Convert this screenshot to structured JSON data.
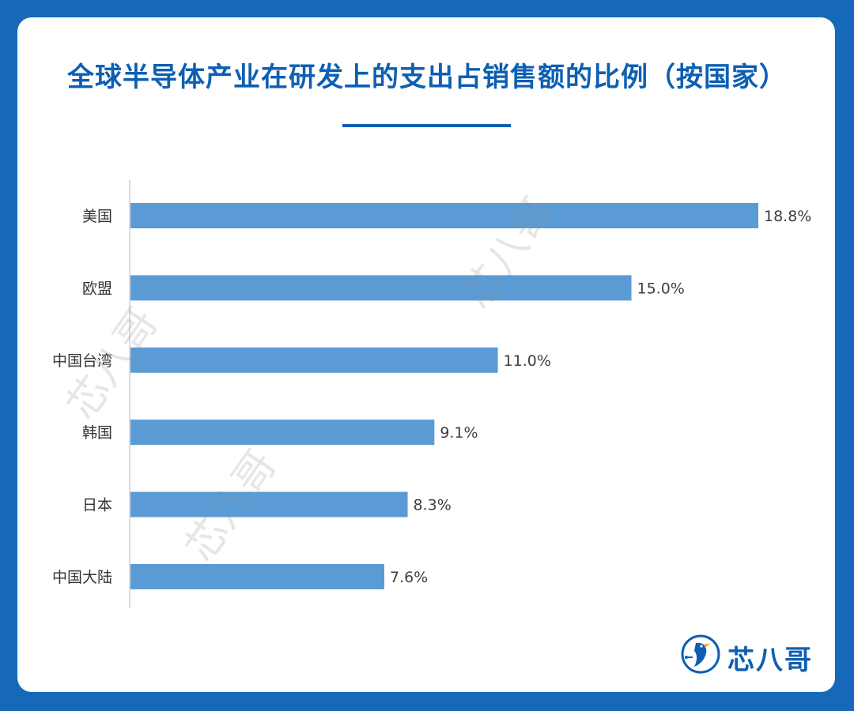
{
  "header": {
    "title": "全球半导体产业在研发上的支出占销售额的比例（按国家）"
  },
  "chart_data": {
    "type": "bar",
    "orientation": "horizontal",
    "title": "全球半导体产业在研发上的支出占销售额的比例（按国家）",
    "categories": [
      "美国",
      "欧盟",
      "中国台湾",
      "韩国",
      "日本",
      "中国大陆"
    ],
    "values": [
      18.8,
      15.0,
      11.0,
      9.1,
      8.3,
      7.6
    ],
    "data_labels": [
      "18.8%",
      "15.0%",
      "11.0%",
      "9.1%",
      "8.3%",
      "7.6%"
    ],
    "value_unit": "%",
    "xlabel": "",
    "ylabel": "",
    "xlim": [
      0,
      20
    ],
    "grid": false,
    "legend": "none",
    "colors": {
      "bar": "#5b9bd5",
      "title": "#0d5fb3",
      "axis": "#d9d9d9",
      "label": "#404040"
    }
  },
  "watermark": {
    "text": "芯八哥"
  },
  "brand": {
    "name": "芯八哥"
  }
}
